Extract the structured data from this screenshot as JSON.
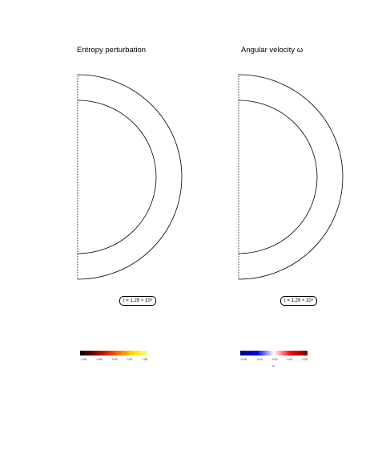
{
  "left_panel": {
    "title": "Entropy perturbation",
    "time_label": "t = 1.29 × 10⁵",
    "colorbar": {
      "colors": [
        "#000000",
        "#7a0000",
        "#e02000",
        "#ff8000",
        "#ffe000",
        "#ffff80"
      ],
      "ticks": [
        "-1.08",
        "-0.54",
        "0.00",
        "0.54",
        "1.08"
      ],
      "label": ""
    }
  },
  "right_panel": {
    "title": "Angular velocity ω",
    "time_label": "t = 1.29 × 10⁵",
    "colorbar": {
      "colors": [
        "#00007a",
        "#0000ff",
        "#ffffff",
        "#ff0000",
        "#7a0000"
      ],
      "ticks": [
        "-0.08",
        "-0.04",
        "0.00",
        "0.04",
        "0.08"
      ],
      "label": "ω"
    }
  }
}
